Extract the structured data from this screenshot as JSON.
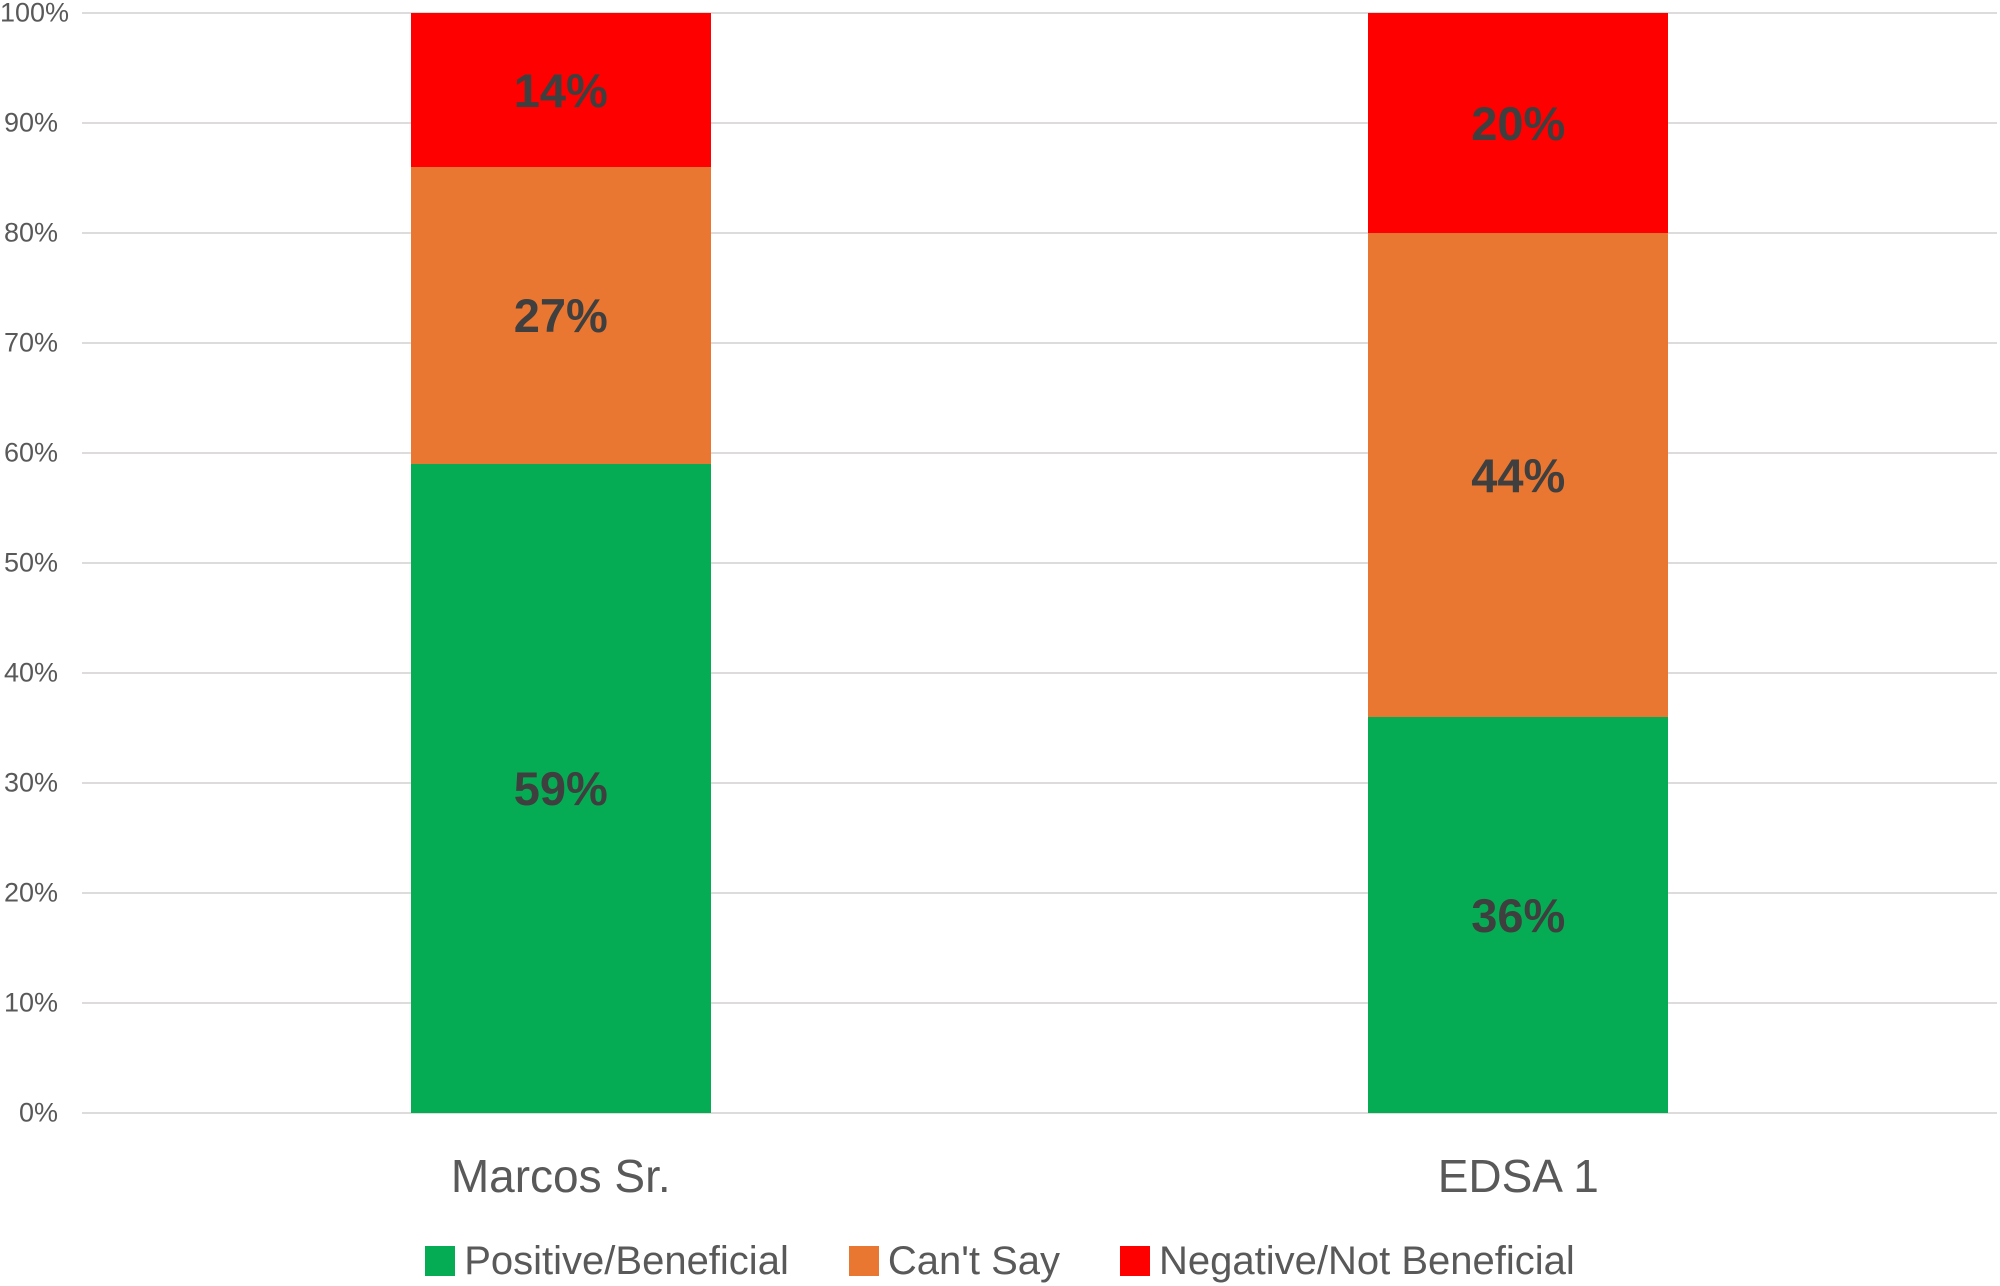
{
  "chart_data": {
    "type": "bar",
    "subtype": "stacked-100",
    "categories": [
      "Marcos Sr.",
      "EDSA 1"
    ],
    "series": [
      {
        "name": "Positive/Beneficial",
        "color": "#06AC54",
        "values": [
          59,
          36
        ],
        "labels": [
          "59%",
          "36%"
        ]
      },
      {
        "name": "Can't Say",
        "color": "#E97731",
        "values": [
          27,
          44
        ],
        "labels": [
          "27%",
          "44%"
        ]
      },
      {
        "name": "Negative/Not Beneficial",
        "color": "#FE0000",
        "values": [
          14,
          20
        ],
        "labels": [
          "14%",
          "20%"
        ]
      }
    ],
    "y_ticks": [
      "0%",
      "10%",
      "20%",
      "30%",
      "40%",
      "50%",
      "60%",
      "70%",
      "80%",
      "90%",
      "100%"
    ],
    "ylim": [
      0,
      100
    ],
    "grid": true,
    "legend_position": "bottom",
    "colors": {
      "gridline": "#DDDBDB",
      "axis_text": "#595959",
      "category_text": "#595959",
      "legend_text": "#595959",
      "data_label_text": "#3F3F3F"
    }
  }
}
